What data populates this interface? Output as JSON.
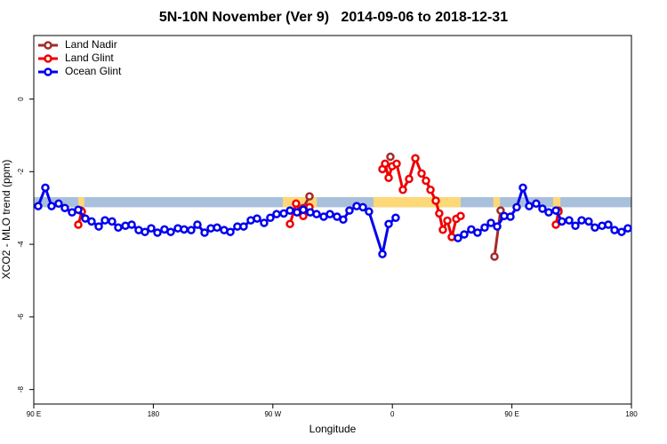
{
  "chart_data": {
    "type": "line",
    "title": "5N-10N November (Ver 9)   2014-09-06 to 2018-12-31",
    "xlabel": "Longitude",
    "ylabel": "XCO2 - MLO trend (ppm)",
    "xlim": [
      90,
      540
    ],
    "xticks": [
      {
        "value": 90,
        "label": "90 E"
      },
      180,
      {
        "value": 270,
        "label": "90 W"
      },
      {
        "value": 360,
        "label": "0"
      },
      {
        "value": 450,
        "label": "90 E"
      },
      {
        "value": 540,
        "label": "180"
      }
    ],
    "ylim": [
      -8.4,
      1.75
    ],
    "yticks": [
      0,
      -2,
      -4,
      -6,
      -8
    ],
    "legend": "top-left",
    "surface_band": {
      "ymin": -2.98,
      "ymax": -2.7,
      "ocean_color": "#a9c0dc",
      "land_color": "#fdd877",
      "land_ranges": [
        [
          123.5,
          128
        ],
        [
          277.5,
          303
        ],
        [
          345.8,
          411.4
        ],
        [
          436,
          441
        ],
        [
          481,
          486.5
        ]
      ]
    },
    "series": [
      {
        "name": "Land Nadir",
        "color": "#a52a2a",
        "x": [
          125.5,
          130,
          292.9,
          297.6,
          300,
          358.5,
          362,
          436.9,
          441.5,
          445,
          485
        ],
        "values": [
          -3.07,
          null,
          -3.0,
          -2.68,
          null,
          -1.59,
          null,
          -4.34,
          -3.07,
          null,
          -3.07
        ]
      },
      {
        "name": "Land Glint",
        "color": "#ee0000",
        "x": [
          123.5,
          126.2,
          130,
          282.9,
          287.5,
          292.9,
          297.6,
          300,
          352.5,
          354.5,
          357.2,
          359.8,
          363.2,
          367.9,
          372.6,
          377.3,
          382,
          385.3,
          388.7,
          392.7,
          395.3,
          398,
          401.4,
          404.7,
          408.1,
          411.4,
          415,
          483.1,
          485.1
        ],
        "values": [
          -3.46,
          -3.1,
          null,
          -3.44,
          -2.88,
          -3.22,
          -2.98,
          null,
          -1.93,
          -1.78,
          -2.17,
          -1.85,
          -1.78,
          -2.5,
          -2.2,
          -1.63,
          -2.05,
          -2.25,
          -2.5,
          -2.8,
          -3.15,
          -3.6,
          -3.35,
          -3.8,
          -3.3,
          -3.22,
          null,
          -3.46,
          -3.1
        ]
      },
      {
        "name": "Ocean Glint",
        "color": "#0000ee",
        "x": [
          93.3,
          98.7,
          103.4,
          108.7,
          113.4,
          118.8,
          123.5,
          128.8,
          133.5,
          138.9,
          143.6,
          148.9,
          153.6,
          159,
          163.7,
          169,
          173.7,
          178.4,
          183.1,
          188.4,
          193.1,
          198.5,
          203.2,
          208.5,
          213.2,
          218.6,
          223.3,
          228,
          233.3,
          238,
          243.3,
          248,
          253.4,
          258.1,
          263.4,
          268.1,
          272.8,
          278.2,
          282.9,
          288.2,
          292.9,
          298.2,
          302.9,
          308.3,
          313,
          318.3,
          323,
          327.7,
          333.1,
          337.8,
          342.4,
          352.5,
          357.2,
          362.5,
          380,
          409.4,
          414.1,
          419.4,
          424.1,
          429.5,
          434.2,
          438.9,
          444.2,
          448.9,
          453.6,
          458.3,
          463,
          468.3,
          473,
          477.7,
          483.1,
          487.7,
          493.1,
          497.8,
          502.5,
          507.8,
          512.5,
          517.9,
          522.6,
          527.3,
          532.6,
          537.3
        ],
        "values": [
          -2.95,
          -2.44,
          -2.95,
          -2.88,
          -3.0,
          -3.12,
          -3.05,
          -3.29,
          -3.37,
          -3.51,
          -3.34,
          -3.37,
          -3.54,
          -3.49,
          -3.46,
          -3.61,
          -3.66,
          -3.56,
          -3.68,
          -3.59,
          -3.66,
          -3.56,
          -3.59,
          -3.61,
          -3.46,
          -3.68,
          -3.56,
          -3.54,
          -3.61,
          -3.66,
          -3.51,
          -3.51,
          -3.34,
          -3.29,
          -3.41,
          -3.27,
          -3.17,
          -3.15,
          -3.07,
          -3.12,
          -3.05,
          -3.12,
          -3.17,
          -3.24,
          -3.17,
          -3.24,
          -3.32,
          -3.07,
          -2.95,
          -2.98,
          -3.1,
          -4.27,
          -3.44,
          -3.27,
          null,
          -3.83,
          -3.73,
          -3.59,
          -3.68,
          -3.54,
          -3.41,
          -3.51,
          -3.22,
          -3.24,
          -2.98,
          -2.44,
          -2.95,
          -2.88,
          -3.02,
          -3.12,
          -3.07,
          -3.37,
          -3.34,
          -3.49,
          -3.34,
          -3.37,
          -3.54,
          -3.49,
          -3.46,
          -3.61,
          -3.66,
          -3.56
        ]
      }
    ]
  }
}
